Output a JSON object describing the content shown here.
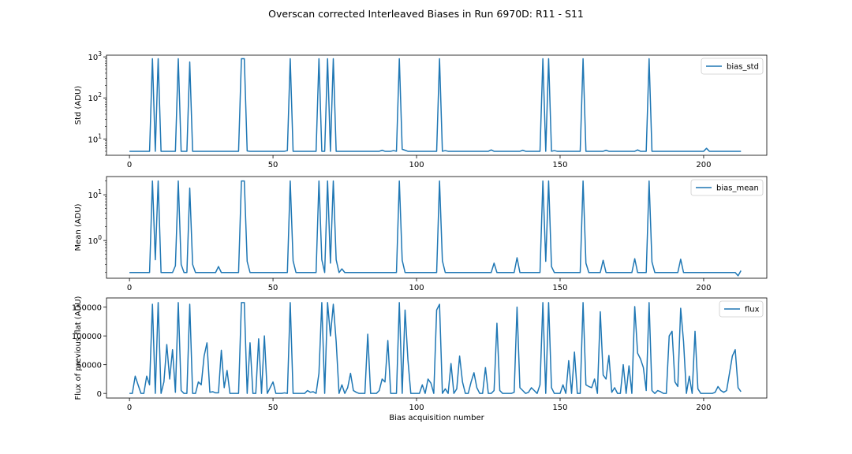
{
  "figure": {
    "title": "Overscan corrected Interleaved Biases in Run 6970D: R11 - S11"
  },
  "chart_data": [
    {
      "type": "line",
      "scale": "log",
      "ylabel": "Std (ADU)",
      "xlabel": "",
      "xlim": [
        -8,
        222
      ],
      "ylim": [
        4,
        1100
      ],
      "x_ticks": [
        0,
        50,
        100,
        150,
        200
      ],
      "y_ticks": [
        10,
        100,
        1000
      ],
      "y_tick_labels": [
        "10^1",
        "10^2",
        "10^3"
      ],
      "legend": {
        "position": "top-right",
        "entries": [
          "bias_std"
        ]
      },
      "color": "#1f77b4",
      "spikes": [
        {
          "x": 8,
          "v": 900
        },
        {
          "x": 10,
          "v": 900
        },
        {
          "x": 17,
          "v": 900
        },
        {
          "x": 21,
          "v": 750
        },
        {
          "x": 39,
          "v": 900
        },
        {
          "x": 40,
          "v": 900
        },
        {
          "x": 56,
          "v": 900
        },
        {
          "x": 66,
          "v": 900
        },
        {
          "x": 69,
          "v": 900
        },
        {
          "x": 71,
          "v": 900
        },
        {
          "x": 94,
          "v": 900
        },
        {
          "x": 108,
          "v": 900
        },
        {
          "x": 144,
          "v": 900
        },
        {
          "x": 146,
          "v": 900
        },
        {
          "x": 158,
          "v": 900
        },
        {
          "x": 181,
          "v": 900
        }
      ],
      "baseline": 5.0,
      "bumps": [
        {
          "x": 41,
          "v": 5.1
        },
        {
          "x": 55,
          "v": 5.2
        },
        {
          "x": 88,
          "v": 5.3
        },
        {
          "x": 92,
          "v": 5.2
        },
        {
          "x": 95,
          "v": 5.6
        },
        {
          "x": 96,
          "v": 5.3
        },
        {
          "x": 110,
          "v": 5.2
        },
        {
          "x": 126,
          "v": 5.4
        },
        {
          "x": 137,
          "v": 5.3
        },
        {
          "x": 148,
          "v": 5.2
        },
        {
          "x": 166,
          "v": 5.3
        },
        {
          "x": 177,
          "v": 5.4
        },
        {
          "x": 201,
          "v": 5.9
        }
      ],
      "n_points": 214
    },
    {
      "type": "line",
      "scale": "log",
      "ylabel": "Mean (ADU)",
      "xlabel": "",
      "xlim": [
        -8,
        222
      ],
      "ylim": [
        0.15,
        25
      ],
      "x_ticks": [
        0,
        50,
        100,
        150,
        200
      ],
      "y_ticks": [
        1,
        10
      ],
      "y_tick_labels": [
        "10^0",
        "10^1"
      ],
      "legend": {
        "position": "top-right",
        "entries": [
          "bias_mean"
        ]
      },
      "color": "#1f77b4",
      "spikes": [
        {
          "x": 8,
          "v": 20
        },
        {
          "x": 10,
          "v": 20
        },
        {
          "x": 17,
          "v": 20
        },
        {
          "x": 21,
          "v": 14
        },
        {
          "x": 39,
          "v": 20
        },
        {
          "x": 40,
          "v": 20
        },
        {
          "x": 56,
          "v": 20
        },
        {
          "x": 66,
          "v": 20
        },
        {
          "x": 69,
          "v": 20
        },
        {
          "x": 71,
          "v": 20
        },
        {
          "x": 94,
          "v": 20
        },
        {
          "x": 108,
          "v": 20
        },
        {
          "x": 144,
          "v": 20
        },
        {
          "x": 146,
          "v": 20
        },
        {
          "x": 158,
          "v": 20
        },
        {
          "x": 181,
          "v": 20
        }
      ],
      "after_spike": [
        {
          "x": 9,
          "v": 0.38
        },
        {
          "x": 18,
          "v": 0.3
        },
        {
          "x": 22,
          "v": 0.3
        },
        {
          "x": 41,
          "v": 0.35
        },
        {
          "x": 57,
          "v": 0.36
        },
        {
          "x": 67,
          "v": 0.38
        },
        {
          "x": 70,
          "v": 0.32
        },
        {
          "x": 72,
          "v": 0.38
        },
        {
          "x": 95,
          "v": 0.37
        },
        {
          "x": 109,
          "v": 0.36
        },
        {
          "x": 145,
          "v": 0.35
        },
        {
          "x": 147,
          "v": 0.27
        },
        {
          "x": 159,
          "v": 0.32
        },
        {
          "x": 182,
          "v": 0.34
        }
      ],
      "bumps": [
        {
          "x": 16,
          "v": 0.28
        },
        {
          "x": 31,
          "v": 0.27
        },
        {
          "x": 74,
          "v": 0.24
        },
        {
          "x": 127,
          "v": 0.32
        },
        {
          "x": 135,
          "v": 0.42
        },
        {
          "x": 165,
          "v": 0.37
        },
        {
          "x": 176,
          "v": 0.4
        },
        {
          "x": 192,
          "v": 0.39
        }
      ],
      "baseline": 0.2,
      "end_dip": {
        "x": 212,
        "v": 0.17
      },
      "end_value": {
        "x": 213,
        "v": 0.22
      },
      "n_points": 214
    },
    {
      "type": "line",
      "scale": "linear",
      "ylabel": "Flux of previous flat (ADU)",
      "xlabel": "Bias acquisition number",
      "xlim": [
        -8,
        222
      ],
      "ylim": [
        -8000,
        166000
      ],
      "x_ticks": [
        0,
        50,
        100,
        150,
        200
      ],
      "y_ticks": [
        0,
        50000,
        100000,
        150000
      ],
      "y_tick_labels": [
        "0",
        "50000",
        "100000",
        "150000"
      ],
      "legend": {
        "position": "top-right",
        "entries": [
          "flux"
        ]
      },
      "color": "#1f77b4",
      "points": [
        [
          0,
          0
        ],
        [
          1,
          0
        ],
        [
          2,
          30000
        ],
        [
          3,
          15000
        ],
        [
          4,
          0
        ],
        [
          5,
          0
        ],
        [
          6,
          30000
        ],
        [
          7,
          15000
        ],
        [
          8,
          155000
        ],
        [
          9,
          0
        ],
        [
          10,
          158000
        ],
        [
          11,
          0
        ],
        [
          12,
          20000
        ],
        [
          13,
          85000
        ],
        [
          14,
          25000
        ],
        [
          15,
          76000
        ],
        [
          16,
          2000
        ],
        [
          17,
          158000
        ],
        [
          18,
          5000
        ],
        [
          19,
          0
        ],
        [
          20,
          0
        ],
        [
          21,
          155000
        ],
        [
          22,
          0
        ],
        [
          23,
          0
        ],
        [
          24,
          20000
        ],
        [
          25,
          15000
        ],
        [
          26,
          65000
        ],
        [
          27,
          88000
        ],
        [
          28,
          2000
        ],
        [
          29,
          3000
        ],
        [
          30,
          1000
        ],
        [
          31,
          1000
        ],
        [
          32,
          75000
        ],
        [
          33,
          10000
        ],
        [
          34,
          40000
        ],
        [
          35,
          0
        ],
        [
          36,
          0
        ],
        [
          37,
          0
        ],
        [
          38,
          0
        ],
        [
          39,
          158000
        ],
        [
          40,
          158000
        ],
        [
          41,
          0
        ],
        [
          42,
          88000
        ],
        [
          43,
          0
        ],
        [
          44,
          0
        ],
        [
          45,
          95000
        ],
        [
          46,
          0
        ],
        [
          47,
          100000
        ],
        [
          48,
          0
        ],
        [
          49,
          10000
        ],
        [
          50,
          20000
        ],
        [
          51,
          0
        ],
        [
          52,
          0
        ],
        [
          53,
          0
        ],
        [
          54,
          1000
        ],
        [
          55,
          0
        ],
        [
          56,
          158000
        ],
        [
          57,
          0
        ],
        [
          58,
          0
        ],
        [
          59,
          0
        ],
        [
          60,
          0
        ],
        [
          61,
          0
        ],
        [
          62,
          5000
        ],
        [
          63,
          2000
        ],
        [
          64,
          3000
        ],
        [
          65,
          0
        ],
        [
          66,
          35000
        ],
        [
          67,
          158000
        ],
        [
          68,
          0
        ],
        [
          69,
          158000
        ],
        [
          70,
          100000
        ],
        [
          71,
          155000
        ],
        [
          72,
          90000
        ],
        [
          73,
          0
        ],
        [
          74,
          15000
        ],
        [
          75,
          0
        ],
        [
          76,
          10000
        ],
        [
          77,
          35000
        ],
        [
          78,
          5000
        ],
        [
          79,
          2000
        ],
        [
          80,
          0
        ],
        [
          81,
          0
        ],
        [
          82,
          0
        ],
        [
          83,
          103000
        ],
        [
          84,
          0
        ],
        [
          85,
          0
        ],
        [
          86,
          0
        ],
        [
          87,
          5000
        ],
        [
          88,
          25000
        ],
        [
          89,
          20000
        ],
        [
          90,
          92000
        ],
        [
          91,
          0
        ],
        [
          92,
          0
        ],
        [
          93,
          0
        ],
        [
          94,
          158000
        ],
        [
          95,
          0
        ],
        [
          96,
          145000
        ],
        [
          97,
          58000
        ],
        [
          98,
          0
        ],
        [
          99,
          0
        ],
        [
          100,
          0
        ],
        [
          101,
          0
        ],
        [
          102,
          15000
        ],
        [
          103,
          0
        ],
        [
          104,
          25000
        ],
        [
          105,
          18000
        ],
        [
          106,
          0
        ],
        [
          107,
          145000
        ],
        [
          108,
          155000
        ],
        [
          109,
          0
        ],
        [
          110,
          8000
        ],
        [
          111,
          0
        ],
        [
          112,
          52000
        ],
        [
          113,
          0
        ],
        [
          114,
          8000
        ],
        [
          115,
          65000
        ],
        [
          116,
          20000
        ],
        [
          117,
          0
        ],
        [
          118,
          0
        ],
        [
          119,
          20000
        ],
        [
          120,
          36000
        ],
        [
          121,
          10000
        ],
        [
          122,
          0
        ],
        [
          123,
          0
        ],
        [
          124,
          45000
        ],
        [
          125,
          0
        ],
        [
          126,
          0
        ],
        [
          127,
          5000
        ],
        [
          128,
          122000
        ],
        [
          129,
          5000
        ],
        [
          130,
          0
        ],
        [
          131,
          0
        ],
        [
          132,
          0
        ],
        [
          133,
          0
        ],
        [
          134,
          2000
        ],
        [
          135,
          150000
        ],
        [
          136,
          10000
        ],
        [
          137,
          5000
        ],
        [
          138,
          0
        ],
        [
          139,
          2000
        ],
        [
          140,
          10000
        ],
        [
          141,
          5000
        ],
        [
          142,
          0
        ],
        [
          143,
          15000
        ],
        [
          144,
          158000
        ],
        [
          145,
          0
        ],
        [
          146,
          158000
        ],
        [
          147,
          10000
        ],
        [
          148,
          0
        ],
        [
          149,
          0
        ],
        [
          150,
          0
        ],
        [
          151,
          15000
        ],
        [
          152,
          0
        ],
        [
          153,
          57000
        ],
        [
          154,
          0
        ],
        [
          155,
          72000
        ],
        [
          156,
          0
        ],
        [
          157,
          0
        ],
        [
          158,
          158000
        ],
        [
          159,
          15000
        ],
        [
          160,
          12000
        ],
        [
          161,
          10000
        ],
        [
          162,
          25000
        ],
        [
          163,
          0
        ],
        [
          164,
          142000
        ],
        [
          165,
          32000
        ],
        [
          166,
          25000
        ],
        [
          167,
          66000
        ],
        [
          168,
          2000
        ],
        [
          169,
          10000
        ],
        [
          170,
          0
        ],
        [
          171,
          0
        ],
        [
          172,
          50000
        ],
        [
          173,
          0
        ],
        [
          174,
          48000
        ],
        [
          175,
          0
        ],
        [
          176,
          151000
        ],
        [
          177,
          70000
        ],
        [
          178,
          60000
        ],
        [
          179,
          45000
        ],
        [
          180,
          5000
        ],
        [
          181,
          158000
        ],
        [
          182,
          5000
        ],
        [
          183,
          0
        ],
        [
          184,
          5000
        ],
        [
          185,
          3000
        ],
        [
          186,
          0
        ],
        [
          187,
          0
        ],
        [
          188,
          100000
        ],
        [
          189,
          108000
        ],
        [
          190,
          20000
        ],
        [
          191,
          12000
        ],
        [
          192,
          148000
        ],
        [
          193,
          90000
        ],
        [
          194,
          0
        ],
        [
          195,
          30000
        ],
        [
          196,
          0
        ],
        [
          197,
          108000
        ],
        [
          198,
          8000
        ],
        [
          199,
          0
        ],
        [
          200,
          0
        ],
        [
          201,
          0
        ],
        [
          202,
          0
        ],
        [
          203,
          0
        ],
        [
          204,
          2000
        ],
        [
          205,
          12000
        ],
        [
          206,
          5000
        ],
        [
          207,
          2000
        ],
        [
          208,
          5000
        ],
        [
          209,
          35000
        ],
        [
          210,
          65000
        ],
        [
          211,
          76000
        ],
        [
          212,
          10000
        ],
        [
          213,
          3000
        ]
      ]
    }
  ]
}
